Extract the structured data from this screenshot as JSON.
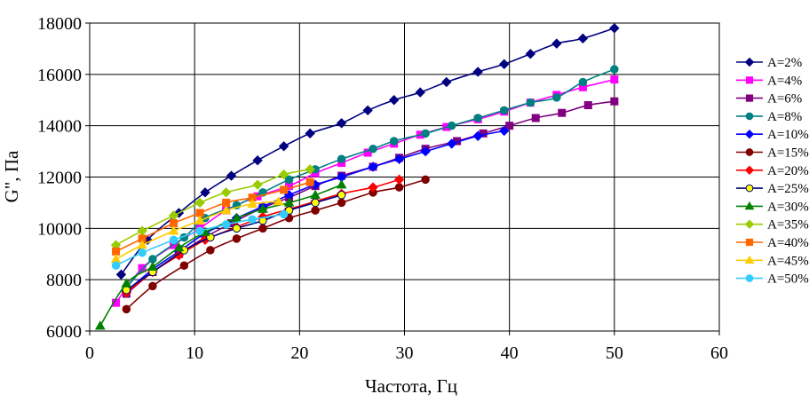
{
  "chart_data": {
    "type": "line",
    "title": "",
    "xlabel": "Частота, Гц",
    "ylabel": "G\", Па",
    "xlim": [
      0,
      60
    ],
    "ylim": [
      6000,
      18000
    ],
    "xticks": [
      0,
      10,
      20,
      30,
      40,
      50,
      60
    ],
    "yticks": [
      6000,
      8000,
      10000,
      12000,
      14000,
      16000,
      18000
    ],
    "grid": true,
    "legend": "right",
    "series": [
      {
        "name": "A=2%",
        "color": "#000080",
        "marker": "diamond",
        "x": [
          3,
          5.5,
          8.5,
          11,
          13.5,
          16,
          18.5,
          21,
          24,
          26.5,
          29,
          31.5,
          34,
          37,
          39.5,
          42,
          44.5,
          47,
          50
        ],
        "y": [
          8200,
          9550,
          10600,
          11400,
          12050,
          12650,
          13200,
          13700,
          14100,
          14600,
          15000,
          15300,
          15700,
          16100,
          16400,
          16800,
          17200,
          17400,
          17800
        ]
      },
      {
        "name": "A=4%",
        "color": "#ff00ff",
        "marker": "square",
        "x": [
          2.5,
          5,
          8,
          10.5,
          13,
          16,
          19,
          21.5,
          24,
          26.5,
          29,
          31.5,
          34,
          37,
          39.5,
          42,
          44.5,
          47,
          50
        ],
        "y": [
          7100,
          8450,
          9350,
          10000,
          10700,
          11250,
          11650,
          12150,
          12550,
          12950,
          13300,
          13650,
          13950,
          14250,
          14550,
          14900,
          15200,
          15500,
          15800
        ]
      },
      {
        "name": "A=6%",
        "color": "#800080",
        "marker": "square",
        "x": [
          3.5,
          6,
          8.5,
          11,
          13.5,
          16.5,
          19,
          21.5,
          24,
          27,
          29.5,
          32,
          35,
          37.5,
          40,
          42.5,
          45,
          47.5,
          50
        ],
        "y": [
          7450,
          8300,
          9000,
          9650,
          10200,
          10800,
          11200,
          11650,
          12050,
          12400,
          12750,
          13100,
          13400,
          13700,
          14000,
          14300,
          14500,
          14800,
          14950
        ]
      },
      {
        "name": "A=8%",
        "color": "#008080",
        "marker": "circle",
        "x": [
          3.5,
          6,
          9,
          11,
          14,
          16.5,
          19,
          21.5,
          24,
          27,
          29,
          32,
          34.5,
          37,
          39.5,
          42,
          44.5,
          47,
          50
        ],
        "y": [
          7700,
          8800,
          9650,
          10400,
          10900,
          11400,
          11900,
          12300,
          12700,
          13100,
          13400,
          13700,
          14000,
          14300,
          14600,
          14900,
          15100,
          15700,
          16200
        ]
      },
      {
        "name": "A=10%",
        "color": "#0000ff",
        "marker": "diamond",
        "x": [
          3.5,
          6,
          8.5,
          11,
          14,
          16.5,
          19,
          21.5,
          24,
          27,
          29.5,
          32,
          34.5,
          37,
          39.5
        ],
        "y": [
          7550,
          8400,
          9100,
          9800,
          10400,
          10850,
          11300,
          11700,
          12000,
          12400,
          12700,
          13000,
          13300,
          13600,
          13800
        ]
      },
      {
        "name": "A=15%",
        "color": "#800000",
        "marker": "circle",
        "x": [
          3.5,
          6,
          9,
          11.5,
          14,
          16.5,
          19,
          21.5,
          24,
          27,
          29.5,
          32
        ],
        "y": [
          6850,
          7750,
          8550,
          9150,
          9600,
          10000,
          10400,
          10700,
          11000,
          11400,
          11600,
          11900
        ]
      },
      {
        "name": "A=20%",
        "color": "#ff0000",
        "marker": "diamond",
        "x": [
          3.5,
          6,
          8.5,
          11,
          14,
          16.5,
          19,
          21.5,
          24,
          27,
          29.5
        ],
        "y": [
          7500,
          8300,
          8950,
          9550,
          10050,
          10450,
          10750,
          11050,
          11350,
          11600,
          11900
        ]
      },
      {
        "name": "A=25%",
        "color": "#000080",
        "fill": "#ffff00",
        "marker": "circle",
        "x": [
          3.5,
          6,
          9,
          11.5,
          14,
          16.5,
          19,
          21.5,
          24
        ],
        "y": [
          7600,
          8300,
          9150,
          9650,
          10000,
          10300,
          10700,
          11000,
          11300
        ]
      },
      {
        "name": "A=30%",
        "color": "#008000",
        "marker": "triangle",
        "x": [
          1,
          3.5,
          6,
          8.5,
          11,
          14,
          16.5,
          19,
          21.5,
          24
        ],
        "y": [
          6200,
          7850,
          8500,
          9250,
          9850,
          10400,
          10750,
          11000,
          11300,
          11700
        ]
      },
      {
        "name": "A=35%",
        "color": "#99cc00",
        "marker": "diamond",
        "x": [
          2.5,
          5,
          8,
          10.5,
          13,
          16,
          18.5,
          21
        ],
        "y": [
          9350,
          9900,
          10500,
          11000,
          11400,
          11700,
          12100,
          12300
        ]
      },
      {
        "name": "A=40%",
        "color": "#ff6600",
        "marker": "square",
        "x": [
          2.5,
          5,
          8,
          10.5,
          13,
          15.5,
          18.5,
          21
        ],
        "y": [
          9100,
          9600,
          10200,
          10600,
          11000,
          11200,
          11500,
          11800
        ]
      },
      {
        "name": "A=45%",
        "color": "#ffcc00",
        "marker": "triangle",
        "x": [
          2.5,
          5,
          8,
          10.5,
          13,
          15.5,
          18
        ],
        "y": [
          8800,
          9350,
          9900,
          10300,
          10700,
          10950,
          11050
        ]
      },
      {
        "name": "A=50%",
        "color": "#33ccff",
        "marker": "circle",
        "x": [
          2.5,
          5,
          8,
          10.5,
          13,
          15.5,
          18.5
        ],
        "y": [
          8550,
          9050,
          9550,
          9900,
          10150,
          10350,
          10550
        ]
      }
    ]
  }
}
